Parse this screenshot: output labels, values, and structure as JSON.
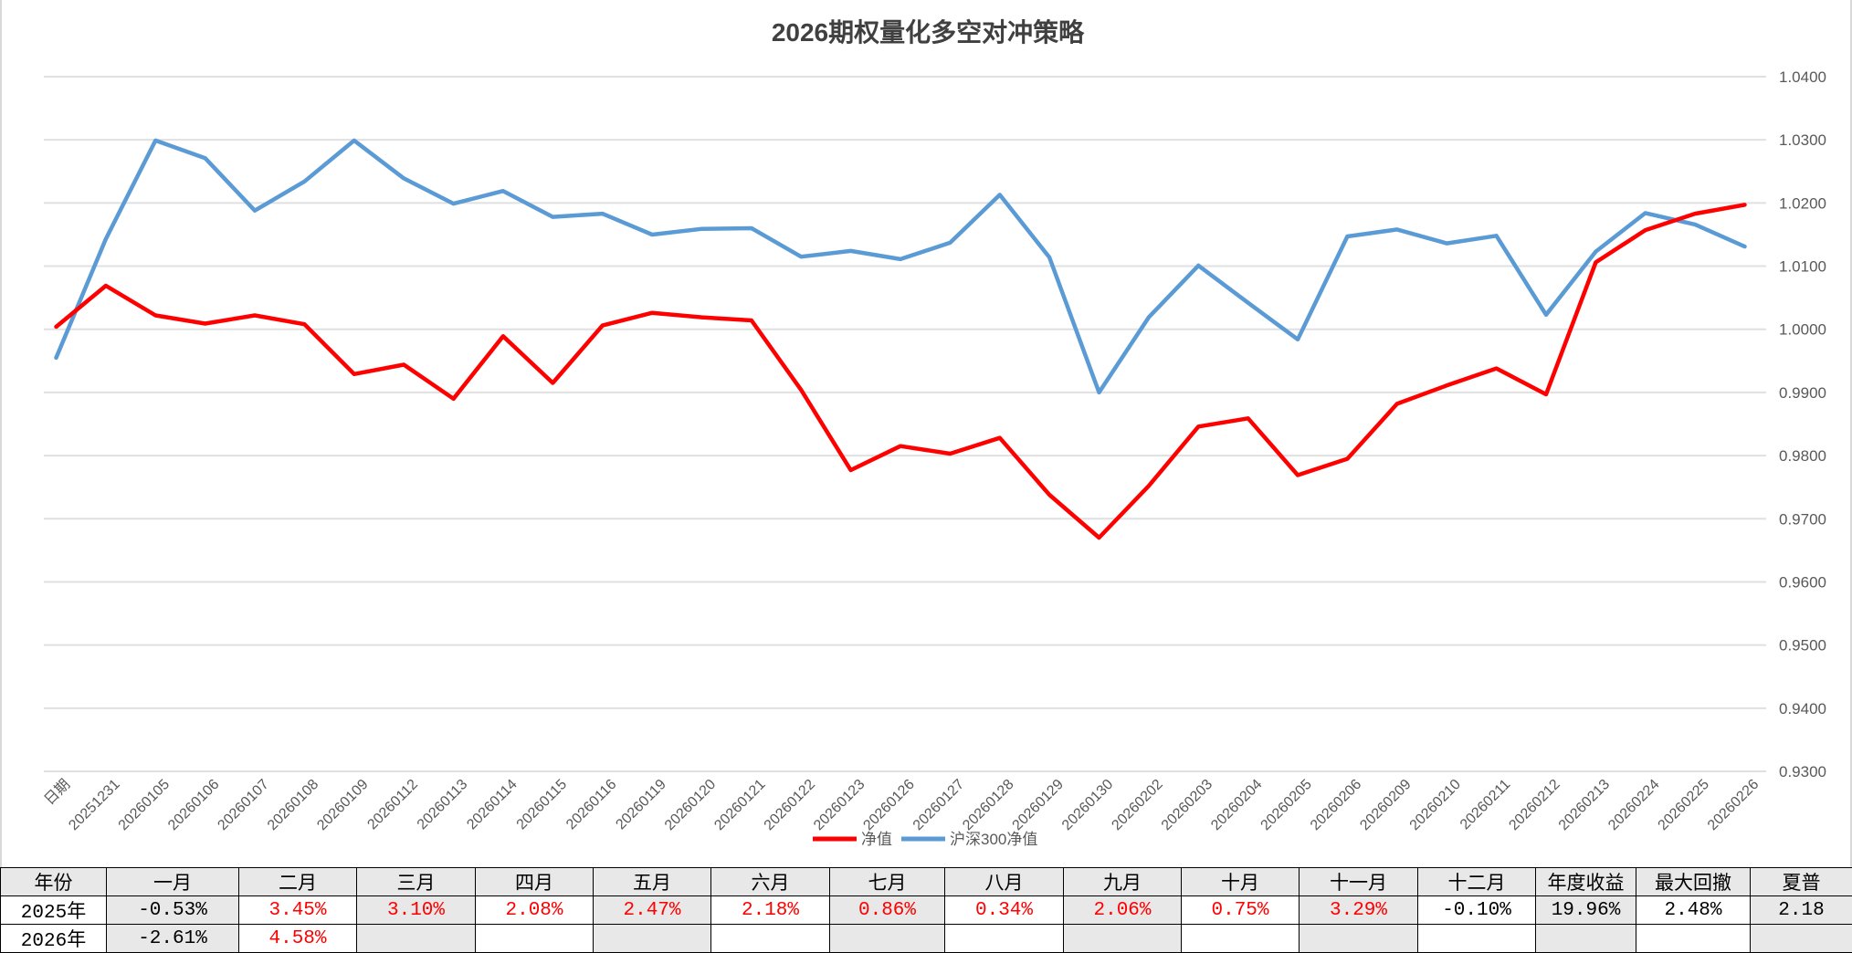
{
  "chart_data": {
    "type": "line",
    "title": "2026期权量化多空对冲策略",
    "categories": [
      "日期",
      "20251231",
      "20260105",
      "20260106",
      "20260107",
      "20260108",
      "20260109",
      "20260112",
      "20260113",
      "20260114",
      "20260115",
      "20260116",
      "20260119",
      "20260120",
      "20260121",
      "20260122",
      "20260123",
      "20260126",
      "20260127",
      "20260128",
      "20260129",
      "20260130",
      "20260202",
      "20260203",
      "20260204",
      "20260205",
      "20260206",
      "20260209",
      "20260210",
      "20260211",
      "20260212",
      "20260213",
      "20260224",
      "20260225",
      "20260226"
    ],
    "series": [
      {
        "name": "净值",
        "color": "#ff0000",
        "values": [
          1.0004,
          1.0069,
          1.0022,
          1.0009,
          1.0022,
          1.0008,
          0.9929,
          0.9944,
          0.989,
          0.9989,
          0.9915,
          1.0006,
          1.0026,
          1.0019,
          1.0014,
          0.9904,
          0.9777,
          0.9815,
          0.9803,
          0.9828,
          0.9738,
          0.967,
          0.9752,
          0.9846,
          0.9859,
          0.9769,
          0.9795,
          0.9882,
          0.9911,
          0.9938,
          0.9897,
          1.0106,
          1.0157,
          1.0183,
          1.0197
        ]
      },
      {
        "name": "沪深300净值",
        "color": "#5b9bd5",
        "values": [
          0.9955,
          1.0143,
          1.0299,
          1.0271,
          1.0188,
          1.0234,
          1.0299,
          1.0239,
          1.0199,
          1.0219,
          1.0178,
          1.0183,
          1.015,
          1.0159,
          1.016,
          1.0115,
          1.0124,
          1.0111,
          1.0137,
          1.0213,
          1.0114,
          0.99,
          1.0019,
          1.0101,
          1.0042,
          0.9984,
          1.0147,
          1.0158,
          1.0136,
          1.0148,
          1.0023,
          1.0123,
          1.0184,
          1.0166,
          1.0131
        ]
      }
    ],
    "ylim": [
      0.93,
      1.04
    ],
    "yticks": [
      "1.0400",
      "1.0300",
      "1.0200",
      "1.0100",
      "1.0000",
      "0.9900",
      "0.9800",
      "0.9700",
      "0.9600",
      "0.9500",
      "0.9400",
      "0.9300"
    ],
    "y_axis_side": "right",
    "grid": true,
    "legend": "bottom"
  },
  "table": {
    "header": [
      "年份",
      "一月",
      "二月",
      "三月",
      "四月",
      "五月",
      "六月",
      "七月",
      "八月",
      "九月",
      "十月",
      "十一月",
      "十二月",
      "年度收益",
      "最大回撤",
      "夏普"
    ],
    "rows": [
      [
        "2025年",
        "-0.53%",
        "3.45%",
        "3.10%",
        "2.08%",
        "2.47%",
        "2.18%",
        "0.86%",
        "0.34%",
        "2.06%",
        "0.75%",
        "3.29%",
        "-0.10%",
        "19.96%",
        "2.48%",
        "2.18"
      ],
      [
        "2026年",
        "-2.61%",
        "4.58%",
        "",
        "",
        "",
        "",
        "",
        "",
        "",
        "",
        "",
        "",
        "",
        "",
        ""
      ]
    ]
  }
}
